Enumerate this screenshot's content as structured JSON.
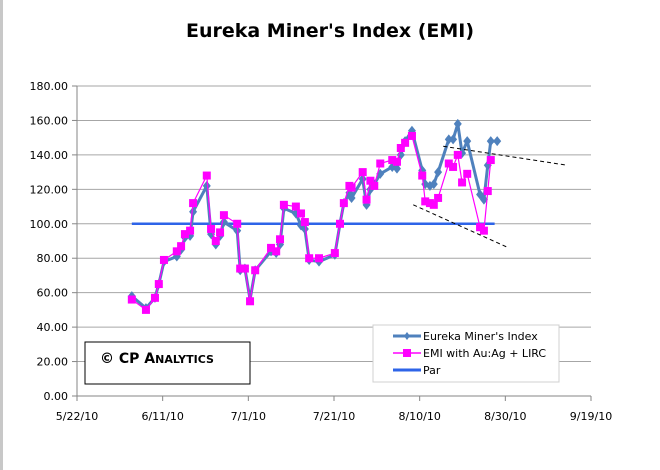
{
  "title": "Eureka Miner's Index (EMI)",
  "watermark": "© CP Analytics",
  "watermark_display": {
    "prefix": "© CP A",
    "small_caps_rest": "NALYTICS"
  },
  "colors": {
    "emi": "#4f81bd",
    "emi_aulirc": "#ff00ff",
    "par": "#2e64e8",
    "trendline": "#000000",
    "gridline": "#a6a6a6"
  },
  "legend": [
    {
      "label": "Eureka Miner's Index",
      "marker": "diamond",
      "color": "#4f81bd"
    },
    {
      "label": "EMI with Au:Ag + LIRC",
      "marker": "square",
      "color": "#ff00ff"
    },
    {
      "label": "Par",
      "marker": "none",
      "color": "#2e64e8"
    }
  ],
  "chart_data": {
    "type": "line",
    "title": "Eureka Miner's Index (EMI)",
    "xlabel": "",
    "ylabel": "",
    "ylim": [
      0,
      180
    ],
    "y_ticks": [
      "0.00",
      "20.00",
      "40.00",
      "60.00",
      "80.00",
      "100.00",
      "120.00",
      "140.00",
      "160.00",
      "180.00"
    ],
    "x_ticks": [
      "5/22/10",
      "6/11/10",
      "7/1/10",
      "7/21/10",
      "8/10/10",
      "8/30/10",
      "9/19/10"
    ],
    "x_range_days_from_5_22_10": [
      0,
      120
    ],
    "grid": "horizontal",
    "legend_position": "lower-right inside plot",
    "series": [
      {
        "name": "Eureka Miner's Index",
        "x_days": [
          12.8,
          16.1,
          18.2,
          19.1,
          20.3,
          23.3,
          24.3,
          25.2,
          26.4,
          27.1,
          30.3,
          31.3,
          32.4,
          33.4,
          34.3,
          37.4,
          38.1,
          39.2,
          40.4,
          41.6,
          45.3,
          46.5,
          47.4,
          48.3,
          51.1,
          52.3,
          53.2,
          54.2,
          56.5,
          60.2,
          61.4,
          62.3,
          63.6,
          64.1,
          66.7,
          67.6,
          68.5,
          69.4,
          70.8,
          73.6,
          74.7,
          75.6,
          76.6,
          78.2,
          80.6,
          81.3,
          82.4,
          83.3,
          84.3,
          86.8,
          87.8,
          88.9,
          89.9,
          91.1,
          94.1,
          95.0,
          95.9,
          96.6,
          98.1
        ],
        "values": [
          58,
          51,
          57,
          65,
          78,
          81,
          85,
          92,
          93,
          107,
          122,
          94,
          88,
          93,
          101,
          96,
          73,
          74,
          56,
          73,
          84,
          83,
          88,
          109,
          106,
          99,
          97,
          79,
          78,
          82,
          100,
          112,
          118,
          115,
          126,
          111,
          120,
          123,
          129,
          133,
          132,
          140,
          148,
          154,
          131,
          123,
          122,
          123,
          130,
          149,
          149,
          158,
          141,
          148,
          117,
          114,
          134,
          148,
          148
        ]
      },
      {
        "name": "EMI with Au:Ag + LIRC",
        "x_days": [
          12.8,
          16.1,
          18.2,
          19.1,
          20.3,
          23.3,
          24.3,
          25.2,
          26.4,
          27.1,
          30.3,
          31.3,
          32.4,
          33.4,
          34.3,
          37.4,
          38.1,
          39.2,
          40.4,
          41.6,
          45.3,
          46.5,
          47.4,
          48.3,
          51.1,
          52.3,
          53.2,
          54.2,
          56.5,
          60.2,
          61.4,
          62.3,
          63.6,
          64.1,
          66.7,
          67.6,
          68.5,
          69.4,
          70.8,
          73.6,
          74.7,
          75.6,
          76.6,
          78.2,
          80.6,
          81.3,
          82.4,
          83.3,
          84.3,
          86.8,
          87.8,
          88.9,
          89.9,
          91.1,
          94.1,
          95.0,
          95.9,
          96.6
        ],
        "values": [
          56,
          50,
          57,
          65,
          79,
          84,
          87,
          94,
          96,
          112,
          128,
          97,
          90,
          95,
          105,
          100,
          74,
          74,
          55,
          73,
          86,
          84,
          91,
          111,
          110,
          106,
          101,
          80,
          80,
          83,
          100,
          112,
          122,
          121,
          130,
          114,
          125,
          122,
          135,
          137,
          136,
          144,
          147,
          151,
          128,
          113,
          112,
          111,
          115,
          135,
          133,
          140,
          124,
          129,
          98,
          96,
          119,
          137
        ]
      },
      {
        "name": "Par",
        "x_days": [
          12.8,
          97.5
        ],
        "values": [
          100,
          100
        ]
      }
    ],
    "annotations": [
      {
        "type": "dashed trendline",
        "from": {
          "x_days": 85.5,
          "value": 145
        },
        "to": {
          "x_days": 114.4,
          "value": 134
        }
      },
      {
        "type": "dashed trendline",
        "from": {
          "x_days": 78.5,
          "value": 111
        },
        "to": {
          "x_days": 100.8,
          "value": 86
        }
      }
    ]
  }
}
